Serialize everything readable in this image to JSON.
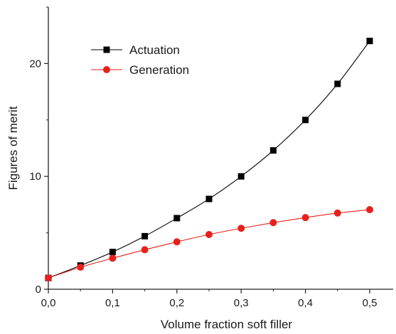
{
  "chart_data": {
    "type": "line",
    "title": "",
    "xlabel": "Volume fraction soft filler",
    "ylabel": "Figures of merit",
    "xlim": [
      0,
      0.5
    ],
    "ylim": [
      0,
      25
    ],
    "x_ticks": [
      0,
      0.1,
      0.2,
      0.3,
      0.4,
      0.5
    ],
    "x_tick_labels": [
      "0,0",
      "0,1",
      "0,2",
      "0,3",
      "0,4",
      "0,5"
    ],
    "y_ticks": [
      0,
      10,
      20
    ],
    "y_tick_labels": [
      "0",
      "10",
      "20"
    ],
    "grid": false,
    "legend_position": "top-left",
    "x": [
      0,
      0.05,
      0.1,
      0.15,
      0.2,
      0.25,
      0.3,
      0.35,
      0.4,
      0.45,
      0.5
    ],
    "series": [
      {
        "name": "Actuation",
        "marker": "square",
        "color": "#000000",
        "line_color": "#000000",
        "values": [
          1.0,
          2.1,
          3.3,
          4.7,
          6.3,
          8.0,
          10.0,
          12.3,
          15.0,
          18.2,
          22.0
        ]
      },
      {
        "name": "Generation",
        "marker": "circle",
        "color": "#e8201c",
        "line_color": "#e8201c",
        "values": [
          1.0,
          1.95,
          2.75,
          3.5,
          4.2,
          4.85,
          5.4,
          5.9,
          6.35,
          6.75,
          7.05
        ]
      }
    ]
  }
}
